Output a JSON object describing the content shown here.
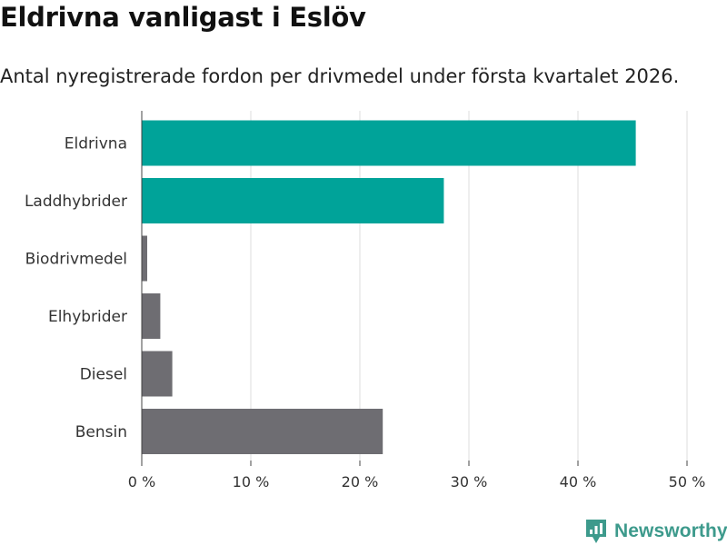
{
  "chart_data": {
    "type": "bar",
    "orientation": "horizontal",
    "title": "Eldrivna vanligast i Eslöv",
    "subtitle": "Antal nyregistrerade fordon per drivmedel under första kvartalet 2026.",
    "categories": [
      "Eldrivna",
      "Laddhybrider",
      "Biodrivmedel",
      "Elhybrider",
      "Diesel",
      "Bensin"
    ],
    "values": [
      45.3,
      27.7,
      0.5,
      1.7,
      2.8,
      22.1
    ],
    "colors": [
      "#00a399",
      "#00a399",
      "#6e6d72",
      "#6e6d72",
      "#6e6d72",
      "#6e6d72"
    ],
    "xlim": [
      0,
      50
    ],
    "xticks": [
      0,
      10,
      20,
      30,
      40,
      50
    ],
    "xtick_labels": [
      "0 %",
      "10 %",
      "20 %",
      "30 %",
      "40 %",
      "50 %"
    ],
    "xlabel": "",
    "ylabel": "",
    "grid": true
  },
  "branding": {
    "name": "Newsworthy",
    "color": "#3d9a8c"
  }
}
